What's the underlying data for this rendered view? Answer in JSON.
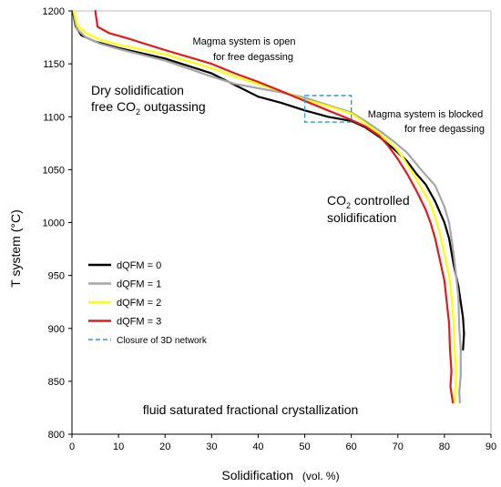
{
  "chart_data": {
    "type": "line",
    "xlabel_main": "Solidification",
    "xlabel_unit": "(vol. %)",
    "ylabel": "T  system (°C)",
    "xlim": [
      0,
      90
    ],
    "ylim": [
      800,
      1200
    ],
    "xticks": [
      0,
      10,
      20,
      30,
      40,
      50,
      60,
      70,
      80,
      90
    ],
    "yticks": [
      800,
      850,
      900,
      950,
      1000,
      1050,
      1100,
      1150,
      1200
    ],
    "grid": false,
    "legend_position": "lower-left inside plot",
    "series": [
      {
        "name": "dQFM = 0",
        "color": "#000000",
        "points": [
          [
            0.2,
            1200
          ],
          [
            0.8,
            1185
          ],
          [
            2,
            1177
          ],
          [
            5,
            1171
          ],
          [
            10,
            1165
          ],
          [
            20,
            1155
          ],
          [
            30,
            1141
          ],
          [
            35,
            1130
          ],
          [
            40,
            1119
          ],
          [
            45,
            1113
          ],
          [
            50,
            1106
          ],
          [
            55,
            1100
          ],
          [
            60,
            1096
          ],
          [
            63,
            1090
          ],
          [
            66,
            1081
          ],
          [
            69,
            1070
          ],
          [
            72,
            1058
          ],
          [
            74,
            1046
          ],
          [
            76,
            1036
          ],
          [
            78,
            1020
          ],
          [
            80,
            1000
          ],
          [
            81,
            985
          ],
          [
            82,
            960
          ],
          [
            83,
            940
          ],
          [
            84,
            910
          ],
          [
            84.2,
            895
          ],
          [
            84,
            880
          ]
        ]
      },
      {
        "name": "dQFM = 1",
        "color": "#a6a6a6",
        "points": [
          [
            0.3,
            1200
          ],
          [
            1,
            1183
          ],
          [
            3,
            1175
          ],
          [
            6,
            1169
          ],
          [
            10,
            1164
          ],
          [
            20,
            1153
          ],
          [
            30,
            1138
          ],
          [
            35,
            1131
          ],
          [
            40,
            1127
          ],
          [
            45,
            1123
          ],
          [
            50,
            1118
          ],
          [
            55,
            1111
          ],
          [
            60,
            1104
          ],
          [
            63,
            1096
          ],
          [
            66,
            1087
          ],
          [
            69,
            1077
          ],
          [
            72,
            1066
          ],
          [
            75,
            1050
          ],
          [
            78,
            1035
          ],
          [
            80,
            1015
          ],
          [
            81,
            1000
          ],
          [
            81.5,
            985
          ],
          [
            82,
            970
          ],
          [
            82.5,
            950
          ],
          [
            83,
            930
          ],
          [
            83.2,
            900
          ],
          [
            83.5,
            880
          ],
          [
            83.5,
            855
          ],
          [
            83.2,
            840
          ],
          [
            83.3,
            830
          ]
        ]
      },
      {
        "name": "dQFM = 2",
        "color": "#ffff00",
        "points": [
          [
            0.4,
            1200
          ],
          [
            1.2,
            1186
          ],
          [
            3,
            1179
          ],
          [
            6,
            1173
          ],
          [
            10,
            1168
          ],
          [
            20,
            1159
          ],
          [
            30,
            1146
          ],
          [
            35,
            1138
          ],
          [
            40,
            1131
          ],
          [
            45,
            1124
          ],
          [
            50,
            1116
          ],
          [
            55,
            1110
          ],
          [
            60,
            1103
          ],
          [
            63,
            1094
          ],
          [
            66,
            1084
          ],
          [
            69,
            1073
          ],
          [
            71,
            1062
          ],
          [
            73,
            1048
          ],
          [
            75,
            1033
          ],
          [
            77,
            1018
          ],
          [
            78,
            1005
          ],
          [
            79,
            990
          ],
          [
            80,
            970
          ],
          [
            81,
            950
          ],
          [
            81.5,
            930
          ],
          [
            82,
            905
          ],
          [
            82.2,
            880
          ],
          [
            82.5,
            855
          ],
          [
            82.3,
            840
          ],
          [
            82.2,
            830
          ]
        ]
      },
      {
        "name": "dQFM = 3",
        "color": "#e31a1c",
        "points": [
          [
            5,
            1200
          ],
          [
            5.5,
            1185
          ],
          [
            8,
            1179
          ],
          [
            12,
            1174
          ],
          [
            20,
            1163
          ],
          [
            30,
            1150
          ],
          [
            35,
            1141
          ],
          [
            40,
            1133
          ],
          [
            45,
            1124
          ],
          [
            50,
            1115
          ],
          [
            55,
            1106
          ],
          [
            60,
            1097
          ],
          [
            63,
            1091
          ],
          [
            66,
            1082
          ],
          [
            68,
            1072
          ],
          [
            70,
            1060
          ],
          [
            72,
            1046
          ],
          [
            74,
            1030
          ],
          [
            76,
            1012
          ],
          [
            77,
            1000
          ],
          [
            78,
            985
          ],
          [
            79,
            965
          ],
          [
            80,
            945
          ],
          [
            80.5,
            925
          ],
          [
            81,
            905
          ],
          [
            81.2,
            880
          ],
          [
            81.5,
            860
          ],
          [
            81.3,
            845
          ],
          [
            81.8,
            830
          ]
        ]
      }
    ],
    "closure_box": {
      "label": "Closure of 3D network",
      "color": "#2e9bd6",
      "x_range": [
        50,
        60
      ],
      "y_range": [
        1095,
        1120
      ]
    },
    "annotations": {
      "open_line1": "Magma system is open",
      "open_line2": "for free degassing",
      "dry_line1": "Dry solidification",
      "dry_line2_pre": "free CO",
      "dry_line2_sub": "2",
      "dry_line2_post": " outgassing",
      "blocked_line1": "Magma system is blocked",
      "blocked_line2": "for free degassing",
      "co2_line1_pre": "CO",
      "co2_line1_sub": "2",
      "co2_line1_post": " controlled",
      "co2_line2": "solidification",
      "fluid": "fluid saturated fractional crystallization"
    }
  }
}
